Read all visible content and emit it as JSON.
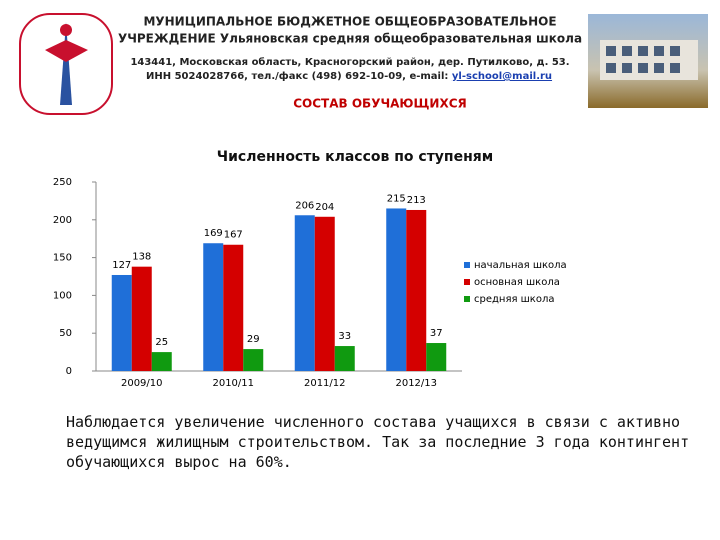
{
  "header": {
    "title_line1": "МУНИЦИПАЛЬНОЕ БЮДЖЕТНОЕ ОБЩЕОБРАЗОВАТЕЛЬНОЕ",
    "title_line2": "УЧРЕЖДЕНИЕ Ульяновская средняя общеобразовательная школа",
    "address": "143441, Московская область, Красногорский район, дер. Путилково, д. 53.",
    "contacts": "ИНН 5024028766, тел./факс (498) 692-10-09, e-mail:",
    "email": "yl-school@mail.ru",
    "section": "СОСТАВ ОБУЧАЮЩИХСЯ"
  },
  "chart_data": {
    "type": "bar",
    "title": "Численность классов по ступеням",
    "categories": [
      "2009/10",
      "2010/11",
      "2011/12",
      "2012/13"
    ],
    "series": [
      {
        "name": "начальная школа",
        "color": "#1f6fd8",
        "values": [
          127,
          169,
          206,
          215
        ]
      },
      {
        "name": "основная школа",
        "color": "#d40000",
        "values": [
          138,
          167,
          204,
          213
        ]
      },
      {
        "name": "средняя школа",
        "color": "#109a10",
        "values": [
          25,
          29,
          33,
          37
        ]
      }
    ],
    "ylim": [
      0,
      250
    ],
    "yticks": [
      0,
      50,
      100,
      150,
      200,
      250
    ],
    "legend": "right"
  },
  "body": {
    "text": "Наблюдается увеличение численного состава учащихся в связи с активно ведущимся жилищным строительством. Так за последние 3 года контингент обучающихся вырос на 60%."
  }
}
